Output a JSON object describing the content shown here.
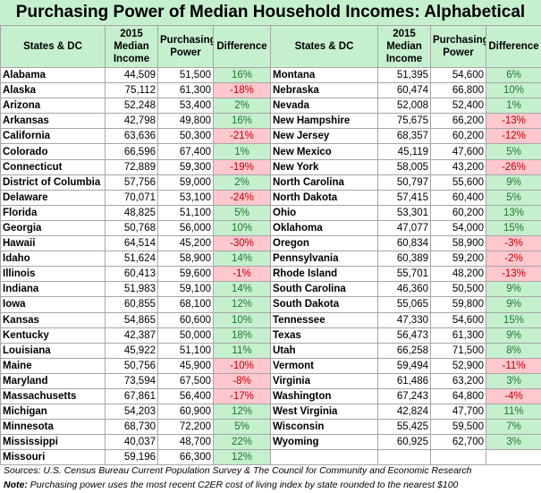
{
  "title": "Purchasing Power of Median Household Incomes: Alphabetical",
  "headers": {
    "state": "States & DC",
    "income": "2015 Median Income",
    "power": "Purchasing Power",
    "diff": "Difference"
  },
  "rows": [
    {
      "l": {
        "state": "Alabama",
        "income": "44,509",
        "power": "51,500",
        "diff": "16%"
      },
      "r": {
        "state": "Montana",
        "income": "51,395",
        "power": "54,600",
        "diff": "6%"
      }
    },
    {
      "l": {
        "state": "Alaska",
        "income": "75,112",
        "power": "61,300",
        "diff": "-18%"
      },
      "r": {
        "state": "Nebraska",
        "income": "60,474",
        "power": "66,800",
        "diff": "10%"
      }
    },
    {
      "l": {
        "state": "Arizona",
        "income": "52,248",
        "power": "53,400",
        "diff": "2%"
      },
      "r": {
        "state": "Nevada",
        "income": "52,008",
        "power": "52,400",
        "diff": "1%"
      }
    },
    {
      "l": {
        "state": "Arkansas",
        "income": "42,798",
        "power": "49,800",
        "diff": "16%"
      },
      "r": {
        "state": "New Hampshire",
        "income": "75,675",
        "power": "66,200",
        "diff": "-13%"
      }
    },
    {
      "l": {
        "state": "California",
        "income": "63,636",
        "power": "50,300",
        "diff": "-21%"
      },
      "r": {
        "state": "New Jersey",
        "income": "68,357",
        "power": "60,200",
        "diff": "-12%"
      }
    },
    {
      "l": {
        "state": "Colorado",
        "income": "66,596",
        "power": "67,400",
        "diff": "1%"
      },
      "r": {
        "state": "New Mexico",
        "income": "45,119",
        "power": "47,600",
        "diff": "5%"
      }
    },
    {
      "l": {
        "state": "Connecticut",
        "income": "72,889",
        "power": "59,300",
        "diff": "-19%"
      },
      "r": {
        "state": "New York",
        "income": "58,005",
        "power": "43,200",
        "diff": "-26%"
      }
    },
    {
      "l": {
        "state": "District of Columbia",
        "income": "57,756",
        "power": "59,000",
        "diff": "2%"
      },
      "r": {
        "state": "North Carolina",
        "income": "50,797",
        "power": "55,600",
        "diff": "9%"
      }
    },
    {
      "l": {
        "state": "Delaware",
        "income": "70,071",
        "power": "53,100",
        "diff": "-24%"
      },
      "r": {
        "state": "North Dakota",
        "income": "57,415",
        "power": "60,400",
        "diff": "5%"
      }
    },
    {
      "l": {
        "state": "Florida",
        "income": "48,825",
        "power": "51,100",
        "diff": "5%"
      },
      "r": {
        "state": "Ohio",
        "income": "53,301",
        "power": "60,200",
        "diff": "13%"
      }
    },
    {
      "l": {
        "state": "Georgia",
        "income": "50,768",
        "power": "56,000",
        "diff": "10%"
      },
      "r": {
        "state": "Oklahoma",
        "income": "47,077",
        "power": "54,000",
        "diff": "15%"
      }
    },
    {
      "l": {
        "state": "Hawaii",
        "income": "64,514",
        "power": "45,200",
        "diff": "-30%"
      },
      "r": {
        "state": "Oregon",
        "income": "60,834",
        "power": "58,900",
        "diff": "-3%"
      }
    },
    {
      "l": {
        "state": "Idaho",
        "income": "51,624",
        "power": "58,900",
        "diff": "14%"
      },
      "r": {
        "state": "Pennsylvania",
        "income": "60,389",
        "power": "59,200",
        "diff": "-2%"
      }
    },
    {
      "l": {
        "state": "Illinois",
        "income": "60,413",
        "power": "59,600",
        "diff": "-1%"
      },
      "r": {
        "state": "Rhode Island",
        "income": "55,701",
        "power": "48,200",
        "diff": "-13%"
      }
    },
    {
      "l": {
        "state": "Indiana",
        "income": "51,983",
        "power": "59,100",
        "diff": "14%"
      },
      "r": {
        "state": "South Carolina",
        "income": "46,360",
        "power": "50,500",
        "diff": "9%"
      }
    },
    {
      "l": {
        "state": "Iowa",
        "income": "60,855",
        "power": "68,100",
        "diff": "12%"
      },
      "r": {
        "state": "South Dakota",
        "income": "55,065",
        "power": "59,800",
        "diff": "9%"
      }
    },
    {
      "l": {
        "state": "Kansas",
        "income": "54,865",
        "power": "60,600",
        "diff": "10%"
      },
      "r": {
        "state": "Tennessee",
        "income": "47,330",
        "power": "54,600",
        "diff": "15%"
      }
    },
    {
      "l": {
        "state": "Kentucky",
        "income": "42,387",
        "power": "50,000",
        "diff": "18%"
      },
      "r": {
        "state": "Texas",
        "income": "56,473",
        "power": "61,300",
        "diff": "9%"
      }
    },
    {
      "l": {
        "state": "Louisiana",
        "income": "45,922",
        "power": "51,100",
        "diff": "11%"
      },
      "r": {
        "state": "Utah",
        "income": "66,258",
        "power": "71,500",
        "diff": "8%"
      }
    },
    {
      "l": {
        "state": "Maine",
        "income": "50,756",
        "power": "45,900",
        "diff": "-10%"
      },
      "r": {
        "state": "Vermont",
        "income": "59,494",
        "power": "52,900",
        "diff": "-11%"
      }
    },
    {
      "l": {
        "state": "Maryland",
        "income": "73,594",
        "power": "67,500",
        "diff": "-8%"
      },
      "r": {
        "state": "Virginia",
        "income": "61,486",
        "power": "63,200",
        "diff": "3%"
      }
    },
    {
      "l": {
        "state": "Massachusetts",
        "income": "67,861",
        "power": "56,400",
        "diff": "-17%"
      },
      "r": {
        "state": "Washington",
        "income": "67,243",
        "power": "64,800",
        "diff": "-4%"
      }
    },
    {
      "l": {
        "state": "Michigan",
        "income": "54,203",
        "power": "60,900",
        "diff": "12%"
      },
      "r": {
        "state": "West Virginia",
        "income": "42,824",
        "power": "47,700",
        "diff": "11%"
      }
    },
    {
      "l": {
        "state": "Minnesota",
        "income": "68,730",
        "power": "72,200",
        "diff": "5%"
      },
      "r": {
        "state": "Wisconsin",
        "income": "55,425",
        "power": "59,500",
        "diff": "7%"
      }
    },
    {
      "l": {
        "state": "Mississippi",
        "income": "40,037",
        "power": "48,700",
        "diff": "22%"
      },
      "r": {
        "state": "Wyoming",
        "income": "60,925",
        "power": "62,700",
        "diff": "3%"
      }
    },
    {
      "l": {
        "state": "Missouri",
        "income": "59,196",
        "power": "66,300",
        "diff": "12%"
      },
      "r": null
    }
  ],
  "footer": {
    "sources_label": "Sources:",
    "sources_text": "U.S. Census Bureau Current Population Survey & The Council for Community and Economic Research",
    "note_label": "Note:",
    "note_text": "Purchasing power uses the most recent C2ER cost of living index by state rounded to the nearest $100"
  }
}
